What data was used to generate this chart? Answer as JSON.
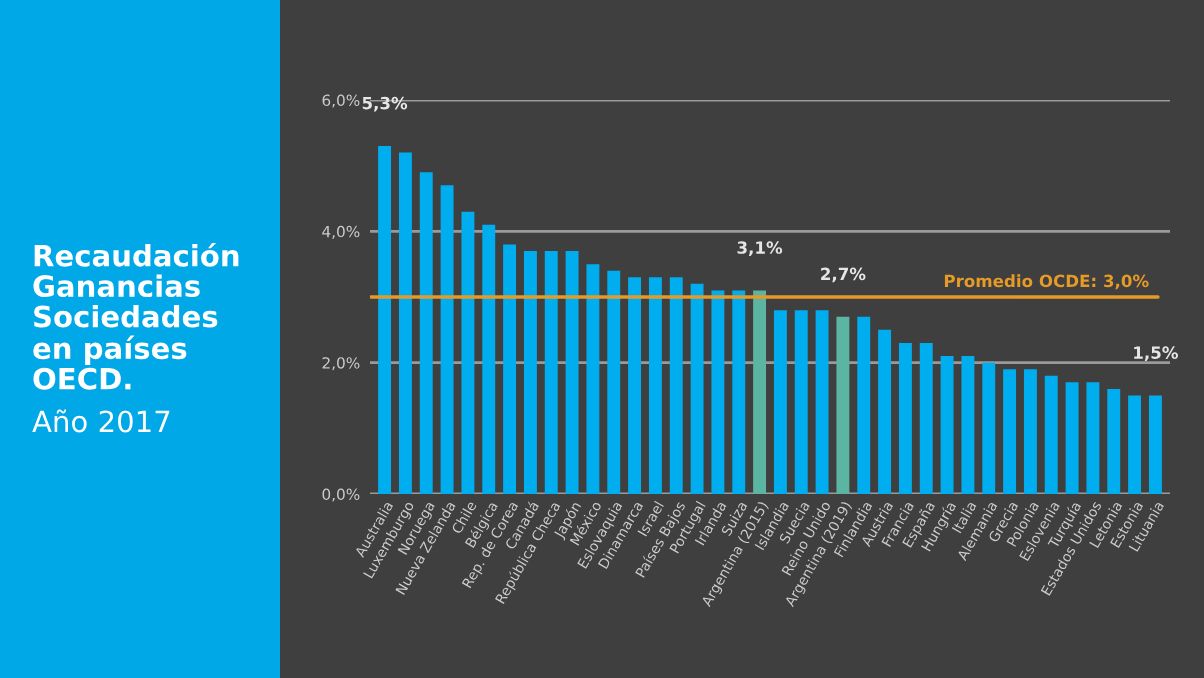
{
  "chart_data": {
    "type": "bar",
    "title": "Recaudación Ganancias Sociedades en países OECD.",
    "subtitle": "Año 2017",
    "categories": [
      "Australia",
      "Luxemburgo",
      "Noruega",
      "Nueva Zelanda",
      "Chile",
      "Bélgica",
      "Rep. de Corea",
      "Canadá",
      "República Checa",
      "Japón",
      "México",
      "Eslovaquia",
      "Dinamarca",
      "Israel",
      "Países Bajos",
      "Portugal",
      "Irlanda",
      "Suiza",
      "Argentina (2015)",
      "Islandia",
      "Suecia",
      "Reino Unido",
      "Argentina (2019)",
      "Finlandia",
      "Austria",
      "Francia",
      "España",
      "Hungría",
      "Italia",
      "Alemania",
      "Grecia",
      "Polonia",
      "Eslovenia",
      "Turquía",
      "Estados Unidos",
      "Letonia",
      "Estonia",
      "Lituania"
    ],
    "values": [
      5.3,
      5.2,
      4.9,
      4.7,
      4.3,
      4.1,
      3.8,
      3.7,
      3.7,
      3.7,
      3.5,
      3.4,
      3.3,
      3.3,
      3.3,
      3.2,
      3.1,
      3.1,
      3.1,
      2.8,
      2.8,
      2.8,
      2.7,
      2.7,
      2.5,
      2.3,
      2.3,
      2.1,
      2.1,
      2.0,
      1.9,
      1.9,
      1.8,
      1.7,
      1.7,
      1.6,
      1.5,
      1.5
    ],
    "colors": [
      "#00aeef",
      "#00aeef",
      "#00aeef",
      "#00aeef",
      "#00aeef",
      "#00aeef",
      "#00aeef",
      "#00aeef",
      "#00aeef",
      "#00aeef",
      "#00aeef",
      "#00aeef",
      "#00aeef",
      "#00aeef",
      "#00aeef",
      "#00aeef",
      "#00aeef",
      "#00aeef",
      "#5bb5a2",
      "#00aeef",
      "#00aeef",
      "#00aeef",
      "#5bb5a2",
      "#00aeef",
      "#00aeef",
      "#00aeef",
      "#00aeef",
      "#00aeef",
      "#00aeef",
      "#00aeef",
      "#00aeef",
      "#00aeef",
      "#00aeef",
      "#00aeef",
      "#00aeef",
      "#00aeef",
      "#00aeef",
      "#00aeef"
    ],
    "value_labels": [
      "5,3%",
      null,
      null,
      null,
      null,
      null,
      null,
      null,
      null,
      null,
      null,
      null,
      null,
      null,
      null,
      null,
      null,
      null,
      "3,1%",
      null,
      null,
      null,
      "2,7%",
      null,
      null,
      null,
      null,
      null,
      null,
      null,
      null,
      null,
      null,
      null,
      null,
      null,
      null,
      "1,5%"
    ],
    "ylim": [
      0,
      6
    ],
    "yticks": [
      {
        "value": 0,
        "label": "0,0%"
      },
      {
        "value": 2,
        "label": "2,0%"
      },
      {
        "value": 4,
        "label": "4,0%"
      },
      {
        "value": 6,
        "label": "6,0%"
      }
    ],
    "grid": "y",
    "ref_lines": [
      {
        "axis": "y",
        "value": 3.0,
        "label": "Promedio OCDE: 3,0%",
        "color": "#e69a28",
        "line_style": "solid"
      }
    ]
  }
}
